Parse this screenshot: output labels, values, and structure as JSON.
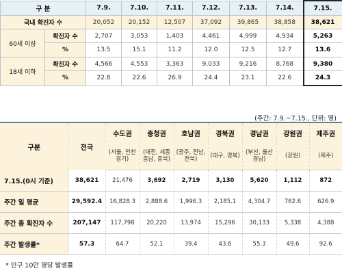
{
  "table1": {
    "header": {
      "label": "구 분",
      "dates": [
        "7.9.",
        "7.10.",
        "7.11.",
        "7.12.",
        "7.13.",
        "7.14.",
        "7.15."
      ]
    },
    "domestic": {
      "label": "국내 확진자 수",
      "values": [
        "20,052",
        "20,152",
        "12,507",
        "37,092",
        "39,865",
        "38,858",
        "38,621"
      ]
    },
    "age60": {
      "group": "60세 이상",
      "count_label": "확진자 수",
      "count_values": [
        "2,707",
        "3,053",
        "1,403",
        "4,461",
        "4,999",
        "4,934",
        "5,263"
      ],
      "pct_label": "%",
      "pct_values": [
        "13.5",
        "15.1",
        "11.2",
        "12.0",
        "12.5",
        "12.7",
        "13.6"
      ]
    },
    "age18": {
      "group": "18세 이하",
      "count_label": "확진자 수",
      "count_values": [
        "4,566",
        "4,553",
        "3,363",
        "9,033",
        "9,216",
        "8,768",
        "9,380"
      ],
      "pct_label": "%",
      "pct_values": [
        "22.8",
        "22.6",
        "26.9",
        "24.4",
        "23.1",
        "22.6",
        "24.3"
      ]
    }
  },
  "note_period": "(주간: 7.9.~7.15., 단위: 명)",
  "table2": {
    "category_label": "구분",
    "total_label": "전국",
    "regions": [
      "수도권",
      "충청권",
      "호남권",
      "경북권",
      "경남권",
      "강원권",
      "제주권"
    ],
    "region_subs": [
      "(서울, 인천 경기)",
      "(대전, 세종 충남, 충북)",
      "(광주, 전남, 전북)",
      "(대구, 경북)",
      "(부산, 울산 경남)",
      "(강원)",
      "(제주)"
    ],
    "rows": [
      {
        "label": "7.15.(0시 기준)",
        "total": "38,621",
        "values": [
          "21,476",
          "3,692",
          "2,719",
          "3,130",
          "5,620",
          "1,112",
          "872"
        ]
      },
      {
        "label": "주간 일 평균",
        "total": "29,592.4",
        "values": [
          "16,828.3",
          "2,888.6",
          "1,996.3",
          "2,185.1",
          "4,304.7",
          "762.6",
          "626.9"
        ]
      },
      {
        "label": "주간 총 확진자 수",
        "total": "207,147",
        "values": [
          "117,798",
          "20,220",
          "13,974",
          "15,296",
          "30,133",
          "5,338",
          "4,388"
        ]
      },
      {
        "label": "주간 발생률*",
        "total": "57.3",
        "values": [
          "64.7",
          "52.1",
          "39.4",
          "43.6",
          "55.3",
          "49.6",
          "92.6"
        ]
      }
    ]
  },
  "footnote": "* 인구 10만 명당 발생률"
}
